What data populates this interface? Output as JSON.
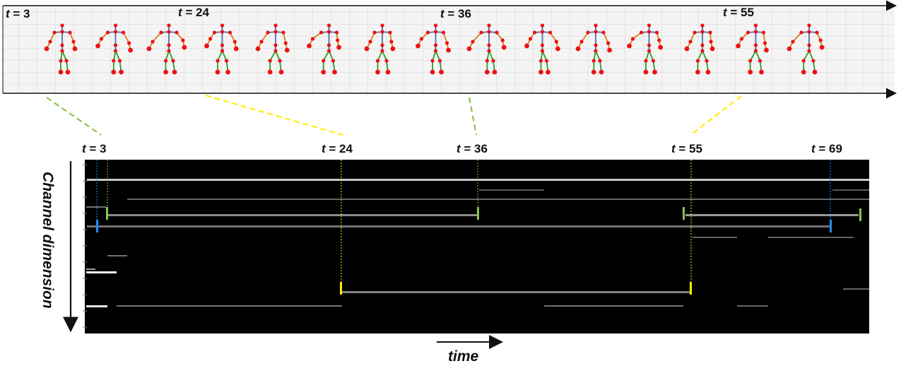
{
  "figure": {
    "top_strip_labels": [
      {
        "prefix": "t",
        "text": " = 3"
      },
      {
        "prefix": "t",
        "text": " = 24"
      },
      {
        "prefix": "t",
        "text": " = 36"
      },
      {
        "prefix": "t",
        "text": " = 55"
      }
    ],
    "heatmap_labels": [
      {
        "prefix": "t",
        "text": " = 3"
      },
      {
        "prefix": "t",
        "text": " = 24"
      },
      {
        "prefix": "t",
        "text": " = 36"
      },
      {
        "prefix": "t",
        "text": " = 55"
      },
      {
        "prefix": "t",
        "text": " = 69"
      }
    ],
    "y_axis_title": "Channel dimension",
    "x_axis_title": "time",
    "skeleton_frame_count": 15,
    "colors": {
      "joint": "#ee1111",
      "bone_torso": "#4a6fb0",
      "bone_arm": "#e07a1a",
      "bone_leg": "#2e9b2e",
      "highlight_green": "#8bc34a",
      "highlight_yellow": "#ffee00",
      "highlight_blue": "#1e90ff",
      "heatmap_bg": "#000000"
    }
  }
}
